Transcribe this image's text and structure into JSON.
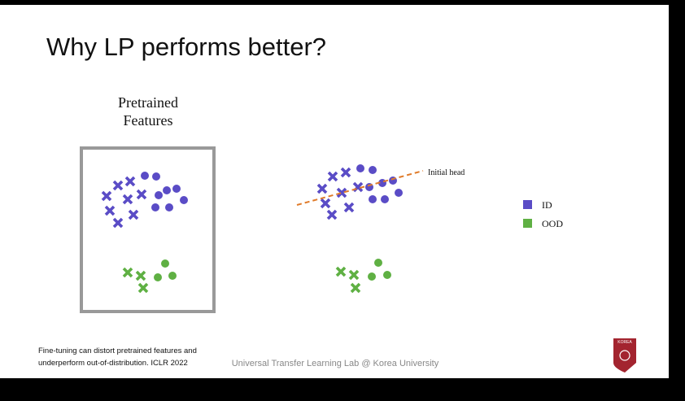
{
  "slide": {
    "title": "Why LP performs better?",
    "panel_label": [
      "Pretrained",
      "Features"
    ],
    "head_label": "Initial head",
    "legend": [
      "ID",
      "OOD"
    ],
    "footnote": [
      "Fine-tuning can distort pretrained features and",
      "underperform out-of-distribution. ICLR 2022"
    ],
    "footer": "Universal Transfer Learning Lab @ Korea University",
    "logo": "KOREA"
  }
}
